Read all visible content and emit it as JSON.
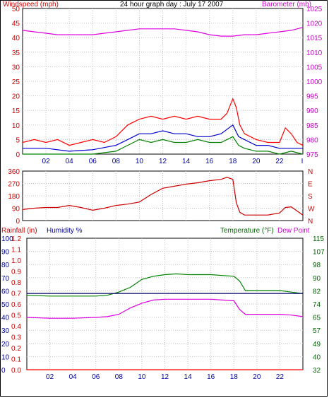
{
  "colors": {
    "axis_red": "#cc0000",
    "axis_magenta": "#cc00cc",
    "axis_blue": "#000099",
    "axis_green": "#006600",
    "windspeed": "#ff0000",
    "windavg": "#0000cc",
    "windlow": "#008000",
    "barometer": "#dd00dd",
    "temperature": "#008000",
    "dewpoint": "#dd00dd",
    "humidity": "#000066",
    "rainfall": "#ff0000"
  },
  "header": {
    "left": "Windspeed (mph)",
    "center": "24 hour graph day : July 17 2007",
    "right": "Barometer (mb)"
  },
  "labels2": {
    "left": "Rainfall (in)",
    "humidity": "Humidity %",
    "temperature": "Temperature (°F)",
    "dewpoint": "Dew Point"
  },
  "chart_data": [
    {
      "type": "line",
      "name": "wind-barometer",
      "x_range": [
        0,
        24
      ],
      "x_ticks": [
        "02",
        "04",
        "06",
        "08",
        "10",
        "12",
        "14",
        "16",
        "18",
        "20",
        "22"
      ],
      "x_end_label": "I",
      "ylabel": "Windspeed (mph)",
      "y2label": "Barometer (mb)",
      "ylim": [
        0,
        50
      ],
      "y_ticks": [
        "0",
        "5",
        "10",
        "15",
        "20",
        "25",
        "30",
        "35",
        "40",
        "45",
        "50"
      ],
      "y2lim": [
        975,
        1025
      ],
      "y2_ticks": [
        "975",
        "980",
        "985",
        "990",
        "995",
        "1000",
        "1005",
        "1010",
        "1015",
        "1020",
        "1025"
      ],
      "series": [
        {
          "name": "Windspeed",
          "axis": "y",
          "color": "#ff0000",
          "x": [
            0,
            1,
            2,
            3,
            4,
            5,
            6,
            7,
            8,
            9,
            10,
            11,
            12,
            13,
            14,
            15,
            16,
            17,
            17.5,
            18,
            18.3,
            18.6,
            19,
            20,
            21,
            22,
            22.5,
            23,
            23.5,
            24
          ],
          "y": [
            4,
            5,
            4,
            5,
            3,
            4,
            5,
            4,
            6,
            10,
            12,
            13,
            12,
            13,
            12,
            13,
            12,
            12,
            14,
            19,
            16,
            10,
            7,
            5,
            4,
            4,
            9,
            7,
            4,
            3
          ]
        },
        {
          "name": "Wind average",
          "axis": "y",
          "color": "#0000cc",
          "x": [
            0,
            2,
            4,
            6,
            8,
            9,
            10,
            11,
            12,
            13,
            14,
            15,
            16,
            17,
            18,
            18.5,
            19,
            20,
            21,
            22,
            23,
            24
          ],
          "y": [
            2,
            2,
            1,
            1.5,
            3,
            5,
            7,
            7,
            8,
            7,
            7,
            6,
            6,
            7,
            10,
            6,
            5,
            3,
            3,
            2,
            2,
            2
          ]
        },
        {
          "name": "Wind low",
          "axis": "y",
          "color": "#008000",
          "x": [
            0,
            2,
            4,
            6,
            8,
            9,
            10,
            11,
            12,
            13,
            14,
            15,
            16,
            17,
            18,
            18.5,
            19,
            20,
            21,
            22,
            23,
            24
          ],
          "y": [
            0,
            0,
            0,
            0,
            1,
            3,
            5,
            4,
            5,
            4,
            4,
            5,
            4,
            4,
            6,
            3,
            2,
            1,
            1,
            0,
            1,
            0
          ]
        },
        {
          "name": "Barometer",
          "axis": "y2",
          "color": "#dd00dd",
          "x": [
            0,
            1,
            2,
            3,
            4,
            5,
            6,
            7,
            8,
            9,
            10,
            11,
            12,
            13,
            14,
            15,
            16,
            17,
            18,
            19,
            20,
            21,
            22,
            23,
            24
          ],
          "y": [
            1017.5,
            1017,
            1016.5,
            1016,
            1016,
            1016,
            1016,
            1016.5,
            1017,
            1017.5,
            1018,
            1018,
            1018,
            1018,
            1017.5,
            1017,
            1016,
            1015.5,
            1015.5,
            1016,
            1016,
            1016.5,
            1017,
            1017.5,
            1018.5
          ]
        }
      ]
    },
    {
      "type": "line",
      "name": "wind-direction",
      "x_range": [
        0,
        24
      ],
      "ylim": [
        0,
        360
      ],
      "y_ticks": [
        "0",
        "90",
        "180",
        "270",
        "360"
      ],
      "y2_labels": [
        "N",
        "W",
        "S",
        "E",
        "N"
      ],
      "series": [
        {
          "name": "Wind direction",
          "color": "#cc0000",
          "x": [
            0,
            1,
            2,
            3,
            4,
            5,
            6,
            7,
            8,
            9,
            10,
            11,
            12,
            13,
            14,
            15,
            16,
            17,
            17.5,
            18,
            18.3,
            18.6,
            19,
            20,
            21,
            22,
            22.5,
            23,
            23.5,
            24
          ],
          "y": [
            80,
            90,
            95,
            95,
            110,
            95,
            75,
            90,
            110,
            120,
            135,
            190,
            235,
            250,
            265,
            275,
            290,
            300,
            315,
            300,
            130,
            60,
            40,
            40,
            40,
            55,
            95,
            100,
            70,
            40
          ]
        }
      ]
    },
    {
      "type": "line",
      "name": "rain-humidity-temperature",
      "x_range": [
        0,
        24
      ],
      "x_ticks": [
        "02",
        "04",
        "06",
        "08",
        "10",
        "12",
        "14",
        "16",
        "18",
        "20",
        "22"
      ],
      "ylabel": "Rainfall (in)",
      "y_ticks_rain": [
        "0.0",
        "0.1",
        "0.2",
        "0.3",
        "0.4",
        "0.5",
        "0.6",
        "0.7",
        "0.8",
        "0.9",
        "1.0",
        "1.1",
        "1.2"
      ],
      "y_ticks_humidity": [
        "0",
        "10",
        "20",
        "30",
        "40",
        "50",
        "60",
        "70",
        "80",
        "90",
        "100"
      ],
      "ylim_humidity": [
        0,
        100
      ],
      "y2label": "Temperature (°F)",
      "y2lim": [
        32,
        115
      ],
      "y2_ticks": [
        "32",
        "40",
        "49",
        "57",
        "65",
        "74",
        "82",
        "90",
        "98",
        "107",
        "115"
      ],
      "series": [
        {
          "name": "Temperature",
          "axis": "y2",
          "color": "#008000",
          "x": [
            0,
            2,
            4,
            6,
            7,
            8,
            9,
            10,
            11,
            12,
            13,
            14,
            15,
            16,
            17,
            18,
            18.5,
            19,
            20,
            21,
            22,
            23,
            24
          ],
          "y": [
            79,
            78.5,
            78.5,
            78.5,
            79,
            81,
            84,
            89,
            91,
            92,
            92.5,
            92,
            92,
            92,
            91.5,
            91,
            88,
            82,
            82,
            82,
            82,
            81,
            80
          ]
        },
        {
          "name": "Dew Point",
          "axis": "y2",
          "color": "#dd00dd",
          "x": [
            0,
            2,
            4,
            6,
            7,
            8,
            9,
            10,
            11,
            12,
            13,
            14,
            15,
            16,
            17,
            18,
            18.5,
            19,
            20,
            21,
            22,
            23,
            24
          ],
          "y": [
            65,
            64.5,
            64.5,
            65,
            65.5,
            67,
            71,
            74,
            76,
            76.5,
            76.5,
            76.5,
            76.5,
            76.5,
            76,
            75.5,
            70,
            67,
            67,
            67,
            67,
            66.5,
            65.5
          ]
        },
        {
          "name": "Humidity",
          "axis": "y_humidity",
          "color": "#000066",
          "x": [
            0,
            24
          ],
          "y": [
            58,
            58
          ]
        },
        {
          "name": "Rainfall",
          "axis": "y_rain",
          "color": "#ff0000",
          "x": [
            0,
            24
          ],
          "y": [
            0.0,
            0.0
          ]
        }
      ]
    }
  ]
}
